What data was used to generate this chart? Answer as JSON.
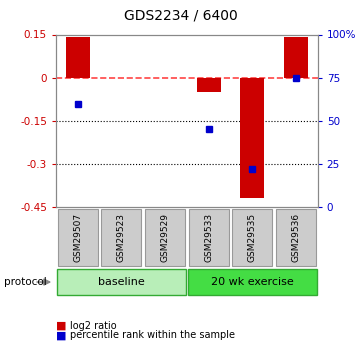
{
  "title": "GDS2234 / 6400",
  "samples": [
    "GSM29507",
    "GSM29523",
    "GSM29529",
    "GSM29533",
    "GSM29535",
    "GSM29536"
  ],
  "log2_ratio": [
    0.14,
    0.0,
    0.0,
    -0.05,
    -0.42,
    0.14
  ],
  "percentile_rank": [
    60.0,
    null,
    null,
    45.0,
    22.0,
    75.0
  ],
  "ylim_left": [
    -0.45,
    0.15
  ],
  "ylim_right": [
    0,
    100
  ],
  "left_ticks": [
    0.15,
    0,
    -0.15,
    -0.3,
    -0.45
  ],
  "right_ticks": [
    100,
    75,
    50,
    25,
    0
  ],
  "groups": [
    {
      "label": "baseline",
      "indices": [
        0,
        1,
        2
      ],
      "color": "#B8EEB8"
    },
    {
      "label": "20 wk exercise",
      "indices": [
        3,
        4,
        5
      ],
      "color": "#44DD44"
    }
  ],
  "bar_color": "#CC0000",
  "point_color": "#0000CC",
  "zero_line_color": "#FF4444",
  "dotted_line_color": "#000000",
  "bar_width": 0.55,
  "background_color": "#ffffff",
  "plot_bg_color": "#ffffff",
  "tick_label_color_left": "#CC0000",
  "tick_label_color_right": "#0000CC",
  "sample_box_color": "#CCCCCC",
  "protocol_label": "protocol",
  "legend_items": [
    "log2 ratio",
    "percentile rank within the sample"
  ]
}
